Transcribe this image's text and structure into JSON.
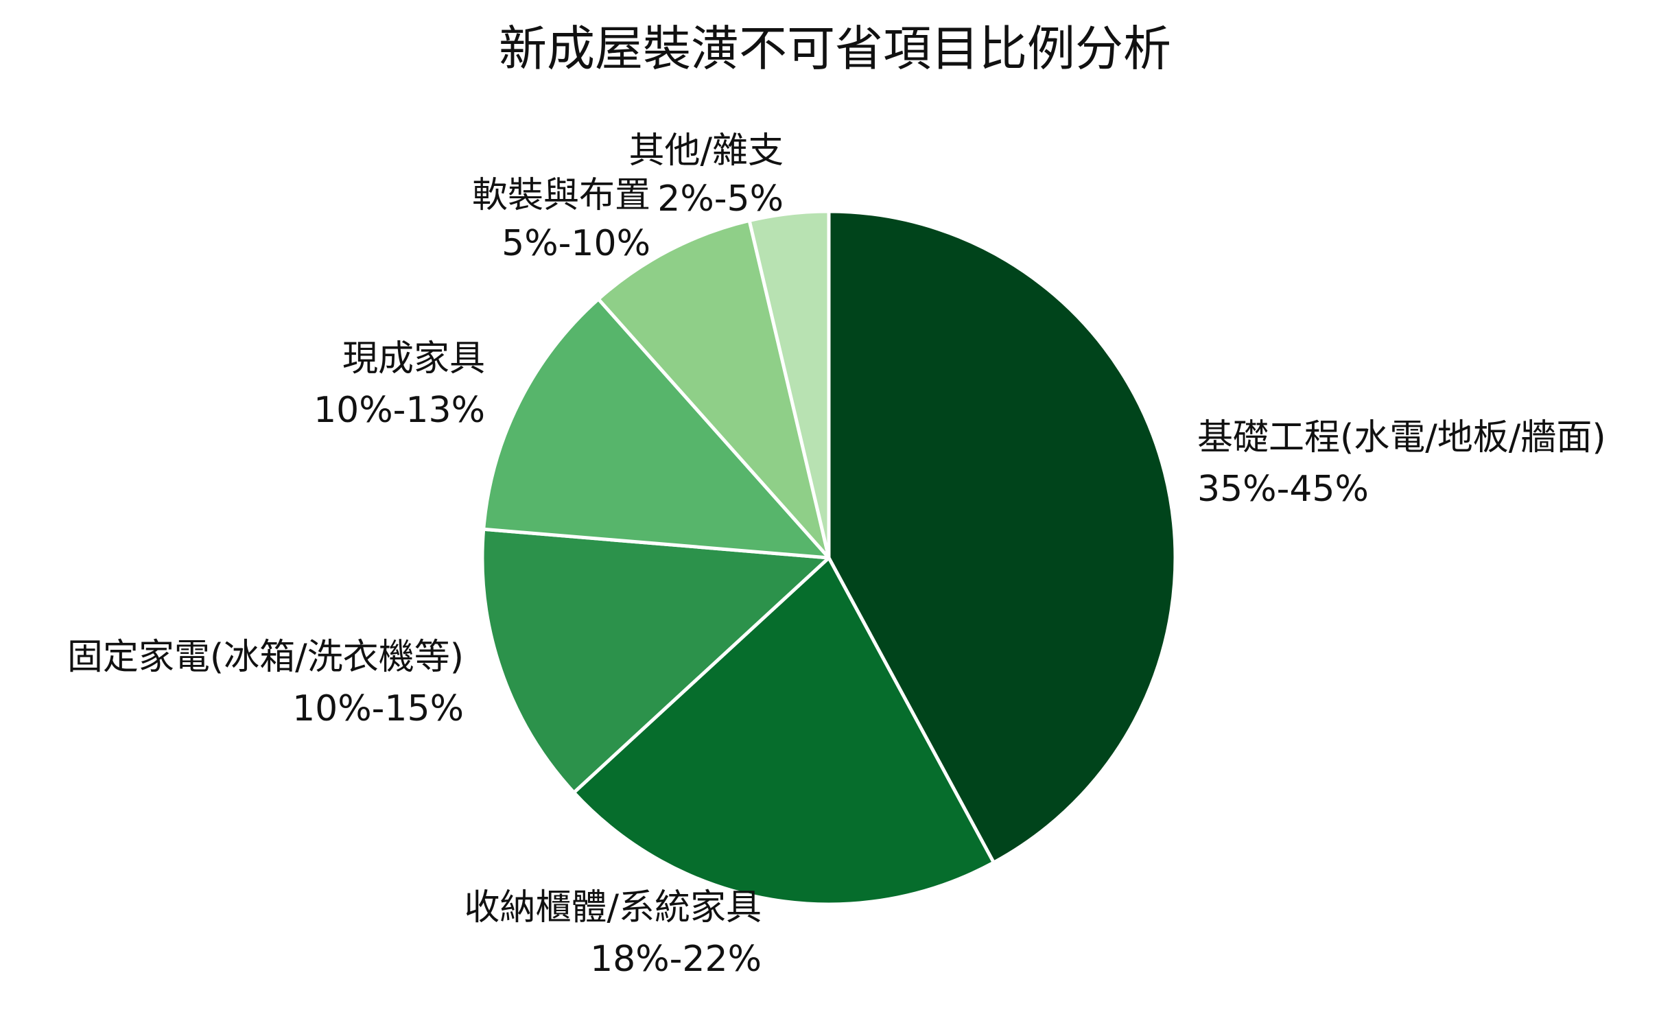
{
  "chart_data": {
    "type": "pie",
    "title": "新成屋裝潢不可省項目比例分析",
    "start_direction": "top",
    "winding": "clockwise",
    "slice_border_color": "#ffffff",
    "slices": [
      {
        "label": "基礎工程(水電/地板/牆面)",
        "range": "35%-45%",
        "value": 40,
        "color": "#00441b",
        "label_side": "right"
      },
      {
        "label": "收納櫃體/系統家具",
        "range": "18%-22%",
        "value": 20,
        "color": "#066d2c",
        "label_side": "bottom"
      },
      {
        "label": "固定家電(冰箱/洗衣機等)",
        "range": "10%-15%",
        "value": 12.5,
        "color": "#2c924b",
        "label_side": "left"
      },
      {
        "label": "現成家具",
        "range": "10%-13%",
        "value": 11.5,
        "color": "#57b56b",
        "label_side": "left"
      },
      {
        "label": "軟裝與布置",
        "range": "5%-10%",
        "value": 7.5,
        "color": "#8fcf88",
        "label_side": "top-left"
      },
      {
        "label": "其他/雜支",
        "range": "2%-5%",
        "value": 3.5,
        "color": "#b8e2b2",
        "label_side": "top"
      }
    ]
  }
}
